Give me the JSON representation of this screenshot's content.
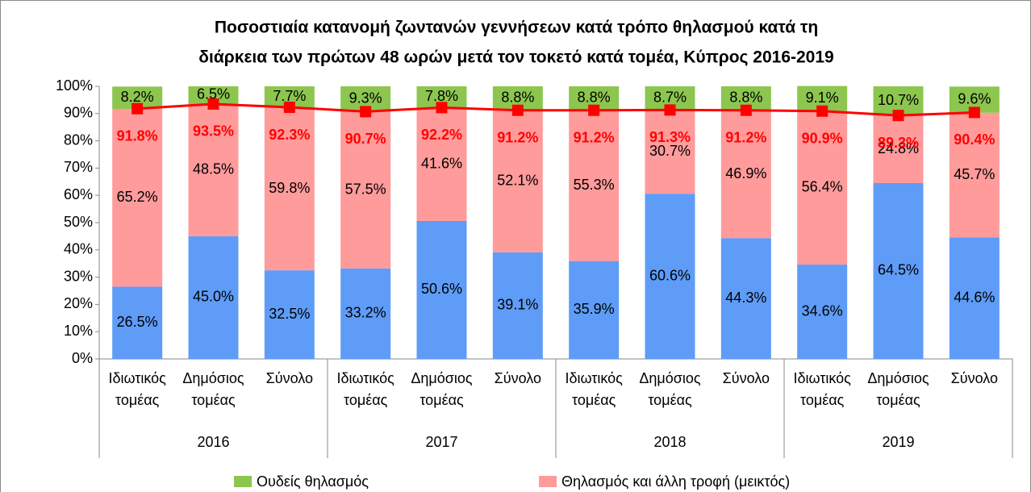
{
  "chart_data": {
    "type": "stacked_bar_line",
    "title": [
      "Ποσοστιαία κατανομή ζωντανών γεννήσεων κατά τρόπο θηλασμού κατά τη",
      "διάρκεια των πρώτων 48 ωρών μετά τον τοκετό κατά τομέα, Κύπρος 2016-2019"
    ],
    "categories": [
      "Ιδιωτικός τομέας",
      "Δημόσιος τομέας",
      "Σύνολο",
      "Ιδιωτικός τομέας",
      "Δημόσιος τομέας",
      "Σύνολο",
      "Ιδιωτικός τομέας",
      "Δημόσιος τομέας",
      "Σύνολο",
      "Ιδιωτικός τομέας",
      "Δημόσιος τομέας",
      "Σύνολο"
    ],
    "group_labels": [
      "2016",
      "2017",
      "2018",
      "2019"
    ],
    "series": [
      {
        "color": "#5e9cf7",
        "values": [
          26.5,
          45.0,
          32.5,
          33.2,
          50.6,
          39.1,
          35.9,
          60.6,
          44.3,
          34.6,
          64.5,
          44.6
        ],
        "value_labels": [
          "26.5%",
          "45.0%",
          "32.5%",
          "33.2%",
          "50.6%",
          "39.1%",
          "35.9%",
          "60.6%",
          "44.3%",
          "34.6%",
          "64.5%",
          "44.6%"
        ]
      },
      {
        "name": "Θηλασμός και άλλη τροφή (μεικτός)",
        "color": "#ff9b9b",
        "values": [
          65.2,
          48.5,
          59.8,
          57.5,
          41.6,
          52.1,
          55.3,
          30.7,
          46.9,
          56.4,
          24.8,
          45.7
        ],
        "value_labels": [
          "65.2%",
          "48.5%",
          "59.8%",
          "57.5%",
          "41.6%",
          "52.1%",
          "55.3%",
          "30.7%",
          "46.9%",
          "56.4%",
          "24.8%",
          "45.7%"
        ]
      },
      {
        "name": "Ουδείς θηλασμός",
        "color": "#8cc64f",
        "values": [
          8.2,
          6.5,
          7.7,
          9.3,
          7.8,
          8.8,
          8.8,
          8.7,
          8.8,
          9.1,
          10.7,
          9.6
        ],
        "value_labels": [
          "8.2%",
          "6.5%",
          "7.7%",
          "9.3%",
          "7.8%",
          "8.8%",
          "8.8%",
          "8.7%",
          "8.8%",
          "9.1%",
          "10.7%",
          "9.6%"
        ]
      }
    ],
    "line": {
      "color": "#ff0000",
      "values": [
        91.8,
        93.5,
        92.3,
        90.7,
        92.2,
        91.2,
        91.2,
        91.3,
        91.2,
        90.9,
        89.3,
        90.4
      ],
      "value_labels": [
        "91.8%",
        "93.5%",
        "92.3%",
        "90.7%",
        "92.2%",
        "91.2%",
        "91.2%",
        "91.3%",
        "91.2%",
        "90.9%",
        "89.3%",
        "90.4%"
      ]
    },
    "ylim": [
      0,
      100
    ],
    "yticks": [
      {
        "value": 0,
        "label": "0%"
      },
      {
        "value": 10,
        "label": "10%"
      },
      {
        "value": 20,
        "label": "20%"
      },
      {
        "value": 30,
        "label": "30%"
      },
      {
        "value": 40,
        "label": "40%"
      },
      {
        "value": 50,
        "label": "50%"
      },
      {
        "value": 60,
        "label": "60%"
      },
      {
        "value": 70,
        "label": "70%"
      },
      {
        "value": 80,
        "label": "80%"
      },
      {
        "value": 90,
        "label": "90%"
      },
      {
        "value": 100,
        "label": "100%"
      }
    ]
  }
}
